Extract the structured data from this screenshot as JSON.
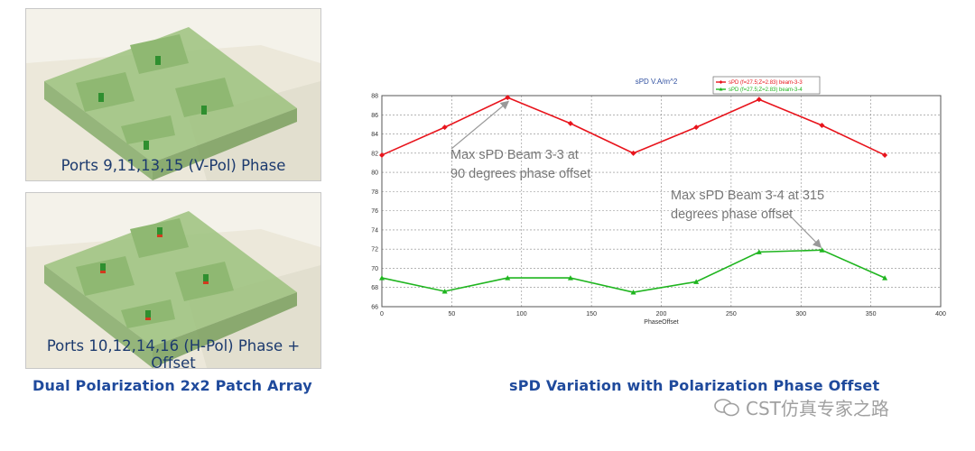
{
  "panels": [
    {
      "caption": "Ports 9,11,13,15 (V-Pol) Phase"
    },
    {
      "caption": "Ports 10,12,14,16 (H-Pol) Phase + Offset"
    }
  ],
  "left_title": "Dual Polarization 2x2 Patch Array",
  "right_title": "sPD Variation with Polarization Phase Offset",
  "watermark": "CST仿真专家之路",
  "chart_data": {
    "type": "line",
    "title": "sPD V.A/m^2",
    "xlabel": "PhaseOffset",
    "ylabel": "",
    "xlim": [
      0,
      400
    ],
    "ylim": [
      66,
      88
    ],
    "xticks": [
      0,
      50,
      100,
      150,
      200,
      250,
      300,
      350,
      400
    ],
    "yticks": [
      66,
      68,
      70,
      72,
      74,
      76,
      78,
      80,
      82,
      84,
      86,
      88
    ],
    "grid": true,
    "legend_position": "top-right",
    "x": [
      0,
      45,
      90,
      135,
      180,
      225,
      270,
      315,
      360
    ],
    "series": [
      {
        "name": "sPD (f=27.5;Z=2.83) beam-3-3",
        "color": "#e8141c",
        "marker": "diamond",
        "values": [
          81.8,
          84.7,
          87.8,
          85.1,
          82.0,
          84.7,
          87.6,
          84.9,
          81.8
        ]
      },
      {
        "name": "sPD (f=27.5;Z=2.83) beam-3-4",
        "color": "#1fb51f",
        "marker": "triangle",
        "values": [
          69.0,
          67.6,
          69.0,
          69.0,
          67.5,
          68.6,
          71.7,
          71.9,
          69.0
        ]
      }
    ],
    "annotations": [
      {
        "lines": [
          "Max sPD Beam 3-3 at",
          "90 degrees phase offset"
        ],
        "target": [
          90,
          87.8
        ]
      },
      {
        "lines": [
          "Max sPD Beam 3-4 at 315",
          "degrees phase offset"
        ],
        "target": [
          315,
          71.9
        ]
      }
    ]
  }
}
